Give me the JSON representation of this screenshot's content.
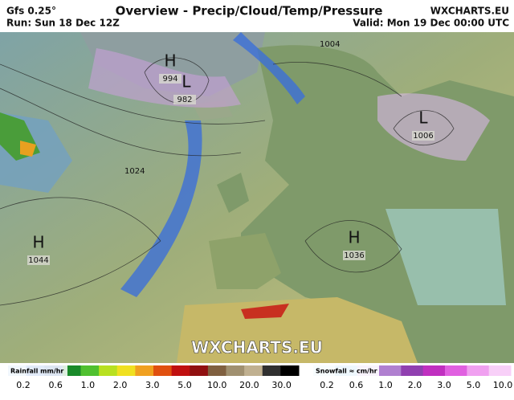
{
  "header": {
    "model": "Gfs 0.25°",
    "run": "Run: Sun 18 Dec 12Z",
    "title": "Overview - Precip/Cloud/Temp/Pressure",
    "site": "WXCHARTS.EU",
    "valid": "Valid: Mon 19 Dec 00:00 UTC"
  },
  "map": {
    "watermark": "WXCHARTS.EU",
    "pressure_centers": [
      {
        "symbol": "H",
        "value": "994"
      },
      {
        "symbol": "L",
        "value": "982"
      },
      {
        "symbol": "L",
        "value": "1006"
      },
      {
        "symbol": "H",
        "value": "1044"
      },
      {
        "symbol": "H",
        "value": "1036"
      }
    ],
    "isobar_labels": [
      "1004",
      "1024"
    ]
  },
  "legend": {
    "rainfall": {
      "title": "Rainfall mm/hr",
      "labels": [
        "0.2",
        "0.6",
        "1.0",
        "2.0",
        "3.0",
        "5.0",
        "10.0",
        "20.0",
        "30.0"
      ]
    },
    "snowfall": {
      "title": "Snowfall ≈ cm/hr",
      "labels": [
        "0.2",
        "0.6",
        "1.0",
        "2.0",
        "3.0",
        "5.0",
        "10.0"
      ]
    }
  }
}
